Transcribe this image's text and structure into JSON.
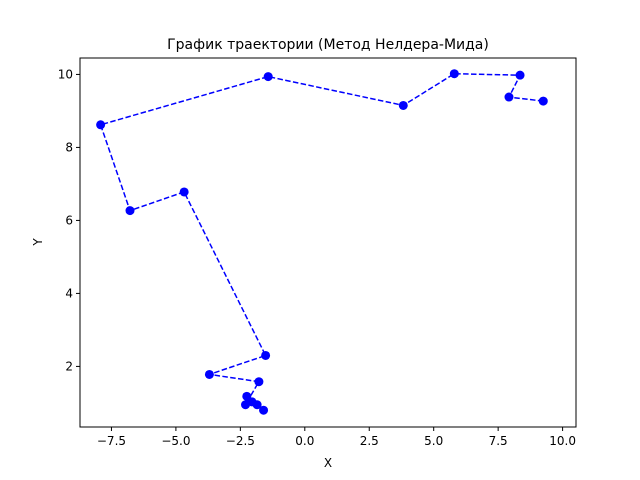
{
  "chart_data": {
    "type": "line",
    "title": "График траектории (Метод Нелдера-Мида)",
    "xlabel": "X",
    "ylabel": "Y",
    "xlim": [
      -8.72,
      10.52
    ],
    "ylim": [
      0.34,
      10.45
    ],
    "xticks": [
      -7.5,
      -5.0,
      -2.5,
      0.0,
      2.5,
      5.0,
      7.5,
      10.0
    ],
    "xtick_labels": [
      "−7.5",
      "−5.0",
      "−2.5",
      "0.0",
      "2.5",
      "5.0",
      "7.5",
      "10.0"
    ],
    "yticks": [
      2,
      4,
      6,
      8,
      10
    ],
    "ytick_labels": [
      "2",
      "4",
      "6",
      "8",
      "10"
    ],
    "grid": false,
    "style": {
      "color": "#0000ff",
      "linestyle": "dashed",
      "marker": "circle"
    },
    "series": [
      {
        "x": [
          9.25,
          7.92,
          8.35,
          5.8,
          3.82,
          -1.42,
          -7.92,
          -6.78,
          -4.68,
          -1.52,
          -3.7,
          -1.78,
          -2.3,
          -2.25,
          -2.05,
          -1.85,
          -1.6
        ],
        "y": [
          9.27,
          9.38,
          9.98,
          10.02,
          9.15,
          9.94,
          8.62,
          6.27,
          6.78,
          2.3,
          1.78,
          1.58,
          0.95,
          1.18,
          1.03,
          0.95,
          0.8
        ]
      }
    ]
  }
}
